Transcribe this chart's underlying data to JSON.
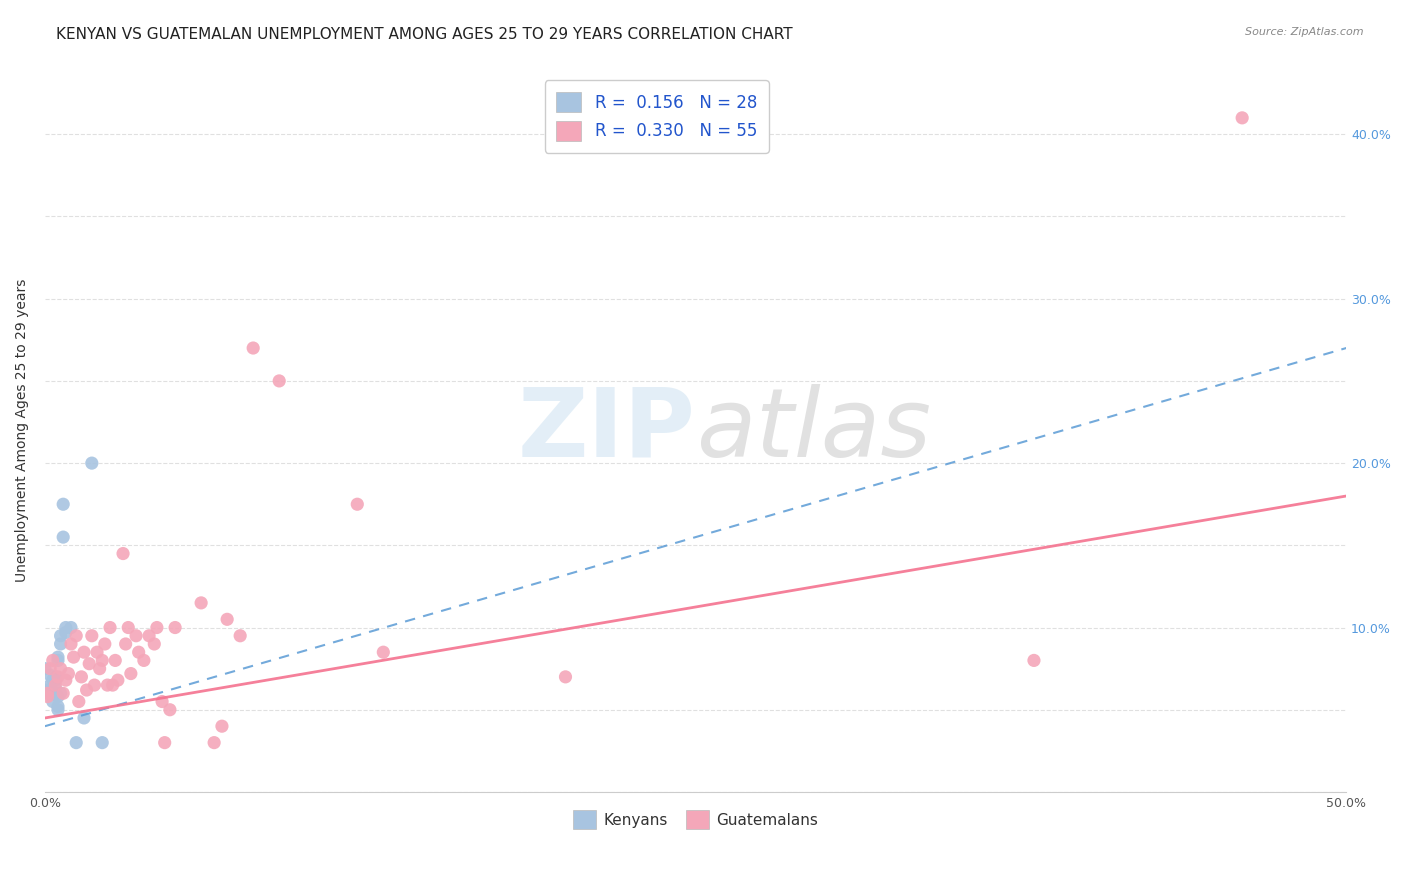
{
  "title": "KENYAN VS GUATEMALAN UNEMPLOYMENT AMONG AGES 25 TO 29 YEARS CORRELATION CHART",
  "source": "Source: ZipAtlas.com",
  "ylabel": "Unemployment Among Ages 25 to 29 years",
  "xlim": [
    0.0,
    50.0
  ],
  "ylim": [
    0.0,
    44.0
  ],
  "xtick_positions": [
    0.0,
    10.0,
    20.0,
    30.0,
    40.0,
    50.0
  ],
  "xticklabels_show": {
    "0.0": "0.0%",
    "50.0": "50.0%"
  },
  "yticks_left": [
    0.0,
    5.0,
    10.0,
    15.0,
    20.0,
    25.0,
    30.0,
    35.0,
    40.0
  ],
  "yticks_right": [
    10.0,
    20.0,
    30.0,
    40.0
  ],
  "yticklabels_right": [
    "10.0%",
    "20.0%",
    "30.0%",
    "40.0%"
  ],
  "legend_kenyan_R": "0.156",
  "legend_kenyan_N": "28",
  "legend_guatemalan_R": "0.330",
  "legend_guatemalan_N": "55",
  "kenyan_color": "#a8c4e0",
  "guatemalan_color": "#f4a7b9",
  "kenyan_line_color": "#5b9bd5",
  "guatemalan_line_color": "#f4728f",
  "watermark_color": "#c8dff0",
  "kenyan_points": [
    [
      0.0,
      6.2
    ],
    [
      0.0,
      7.5
    ],
    [
      0.2,
      7.1
    ],
    [
      0.2,
      6.5
    ],
    [
      0.3,
      6.8
    ],
    [
      0.3,
      6.0
    ],
    [
      0.3,
      5.5
    ],
    [
      0.4,
      7.0
    ],
    [
      0.4,
      6.8
    ],
    [
      0.4,
      6.3
    ],
    [
      0.4,
      6.0
    ],
    [
      0.5,
      8.0
    ],
    [
      0.5,
      8.2
    ],
    [
      0.5,
      5.8
    ],
    [
      0.5,
      5.2
    ],
    [
      0.5,
      5.0
    ],
    [
      0.6,
      9.5
    ],
    [
      0.6,
      9.0
    ],
    [
      0.6,
      6.0
    ],
    [
      0.7,
      17.5
    ],
    [
      0.7,
      15.5
    ],
    [
      0.8,
      10.0
    ],
    [
      0.8,
      9.7
    ],
    [
      1.0,
      10.0
    ],
    [
      1.2,
      3.0
    ],
    [
      1.5,
      4.5
    ],
    [
      1.8,
      20.0
    ],
    [
      2.2,
      3.0
    ]
  ],
  "guatemalan_points": [
    [
      0.1,
      6.0
    ],
    [
      0.1,
      5.8
    ],
    [
      0.2,
      7.5
    ],
    [
      0.3,
      8.0
    ],
    [
      0.4,
      6.5
    ],
    [
      0.5,
      7.0
    ],
    [
      0.6,
      7.5
    ],
    [
      0.7,
      6.0
    ],
    [
      0.8,
      6.8
    ],
    [
      0.9,
      7.2
    ],
    [
      1.0,
      9.0
    ],
    [
      1.1,
      8.2
    ],
    [
      1.2,
      9.5
    ],
    [
      1.3,
      5.5
    ],
    [
      1.4,
      7.0
    ],
    [
      1.5,
      8.5
    ],
    [
      1.6,
      6.2
    ],
    [
      1.7,
      7.8
    ],
    [
      1.8,
      9.5
    ],
    [
      1.9,
      6.5
    ],
    [
      2.0,
      8.5
    ],
    [
      2.1,
      7.5
    ],
    [
      2.2,
      8.0
    ],
    [
      2.3,
      9.0
    ],
    [
      2.4,
      6.5
    ],
    [
      2.5,
      10.0
    ],
    [
      2.6,
      6.5
    ],
    [
      2.7,
      8.0
    ],
    [
      2.8,
      6.8
    ],
    [
      3.0,
      14.5
    ],
    [
      3.1,
      9.0
    ],
    [
      3.2,
      10.0
    ],
    [
      3.3,
      7.2
    ],
    [
      3.5,
      9.5
    ],
    [
      3.6,
      8.5
    ],
    [
      3.8,
      8.0
    ],
    [
      4.0,
      9.5
    ],
    [
      4.2,
      9.0
    ],
    [
      4.3,
      10.0
    ],
    [
      4.5,
      5.5
    ],
    [
      4.6,
      3.0
    ],
    [
      4.8,
      5.0
    ],
    [
      5.0,
      10.0
    ],
    [
      6.0,
      11.5
    ],
    [
      6.5,
      3.0
    ],
    [
      6.8,
      4.0
    ],
    [
      7.0,
      10.5
    ],
    [
      7.5,
      9.5
    ],
    [
      8.0,
      27.0
    ],
    [
      9.0,
      25.0
    ],
    [
      12.0,
      17.5
    ],
    [
      13.0,
      8.5
    ],
    [
      20.0,
      7.0
    ],
    [
      38.0,
      8.0
    ],
    [
      46.0,
      41.0
    ]
  ],
  "background_color": "#ffffff",
  "grid_color": "#dddddd",
  "title_fontsize": 11,
  "axis_label_fontsize": 10,
  "tick_fontsize": 9,
  "right_tick_color": "#5599dd"
}
